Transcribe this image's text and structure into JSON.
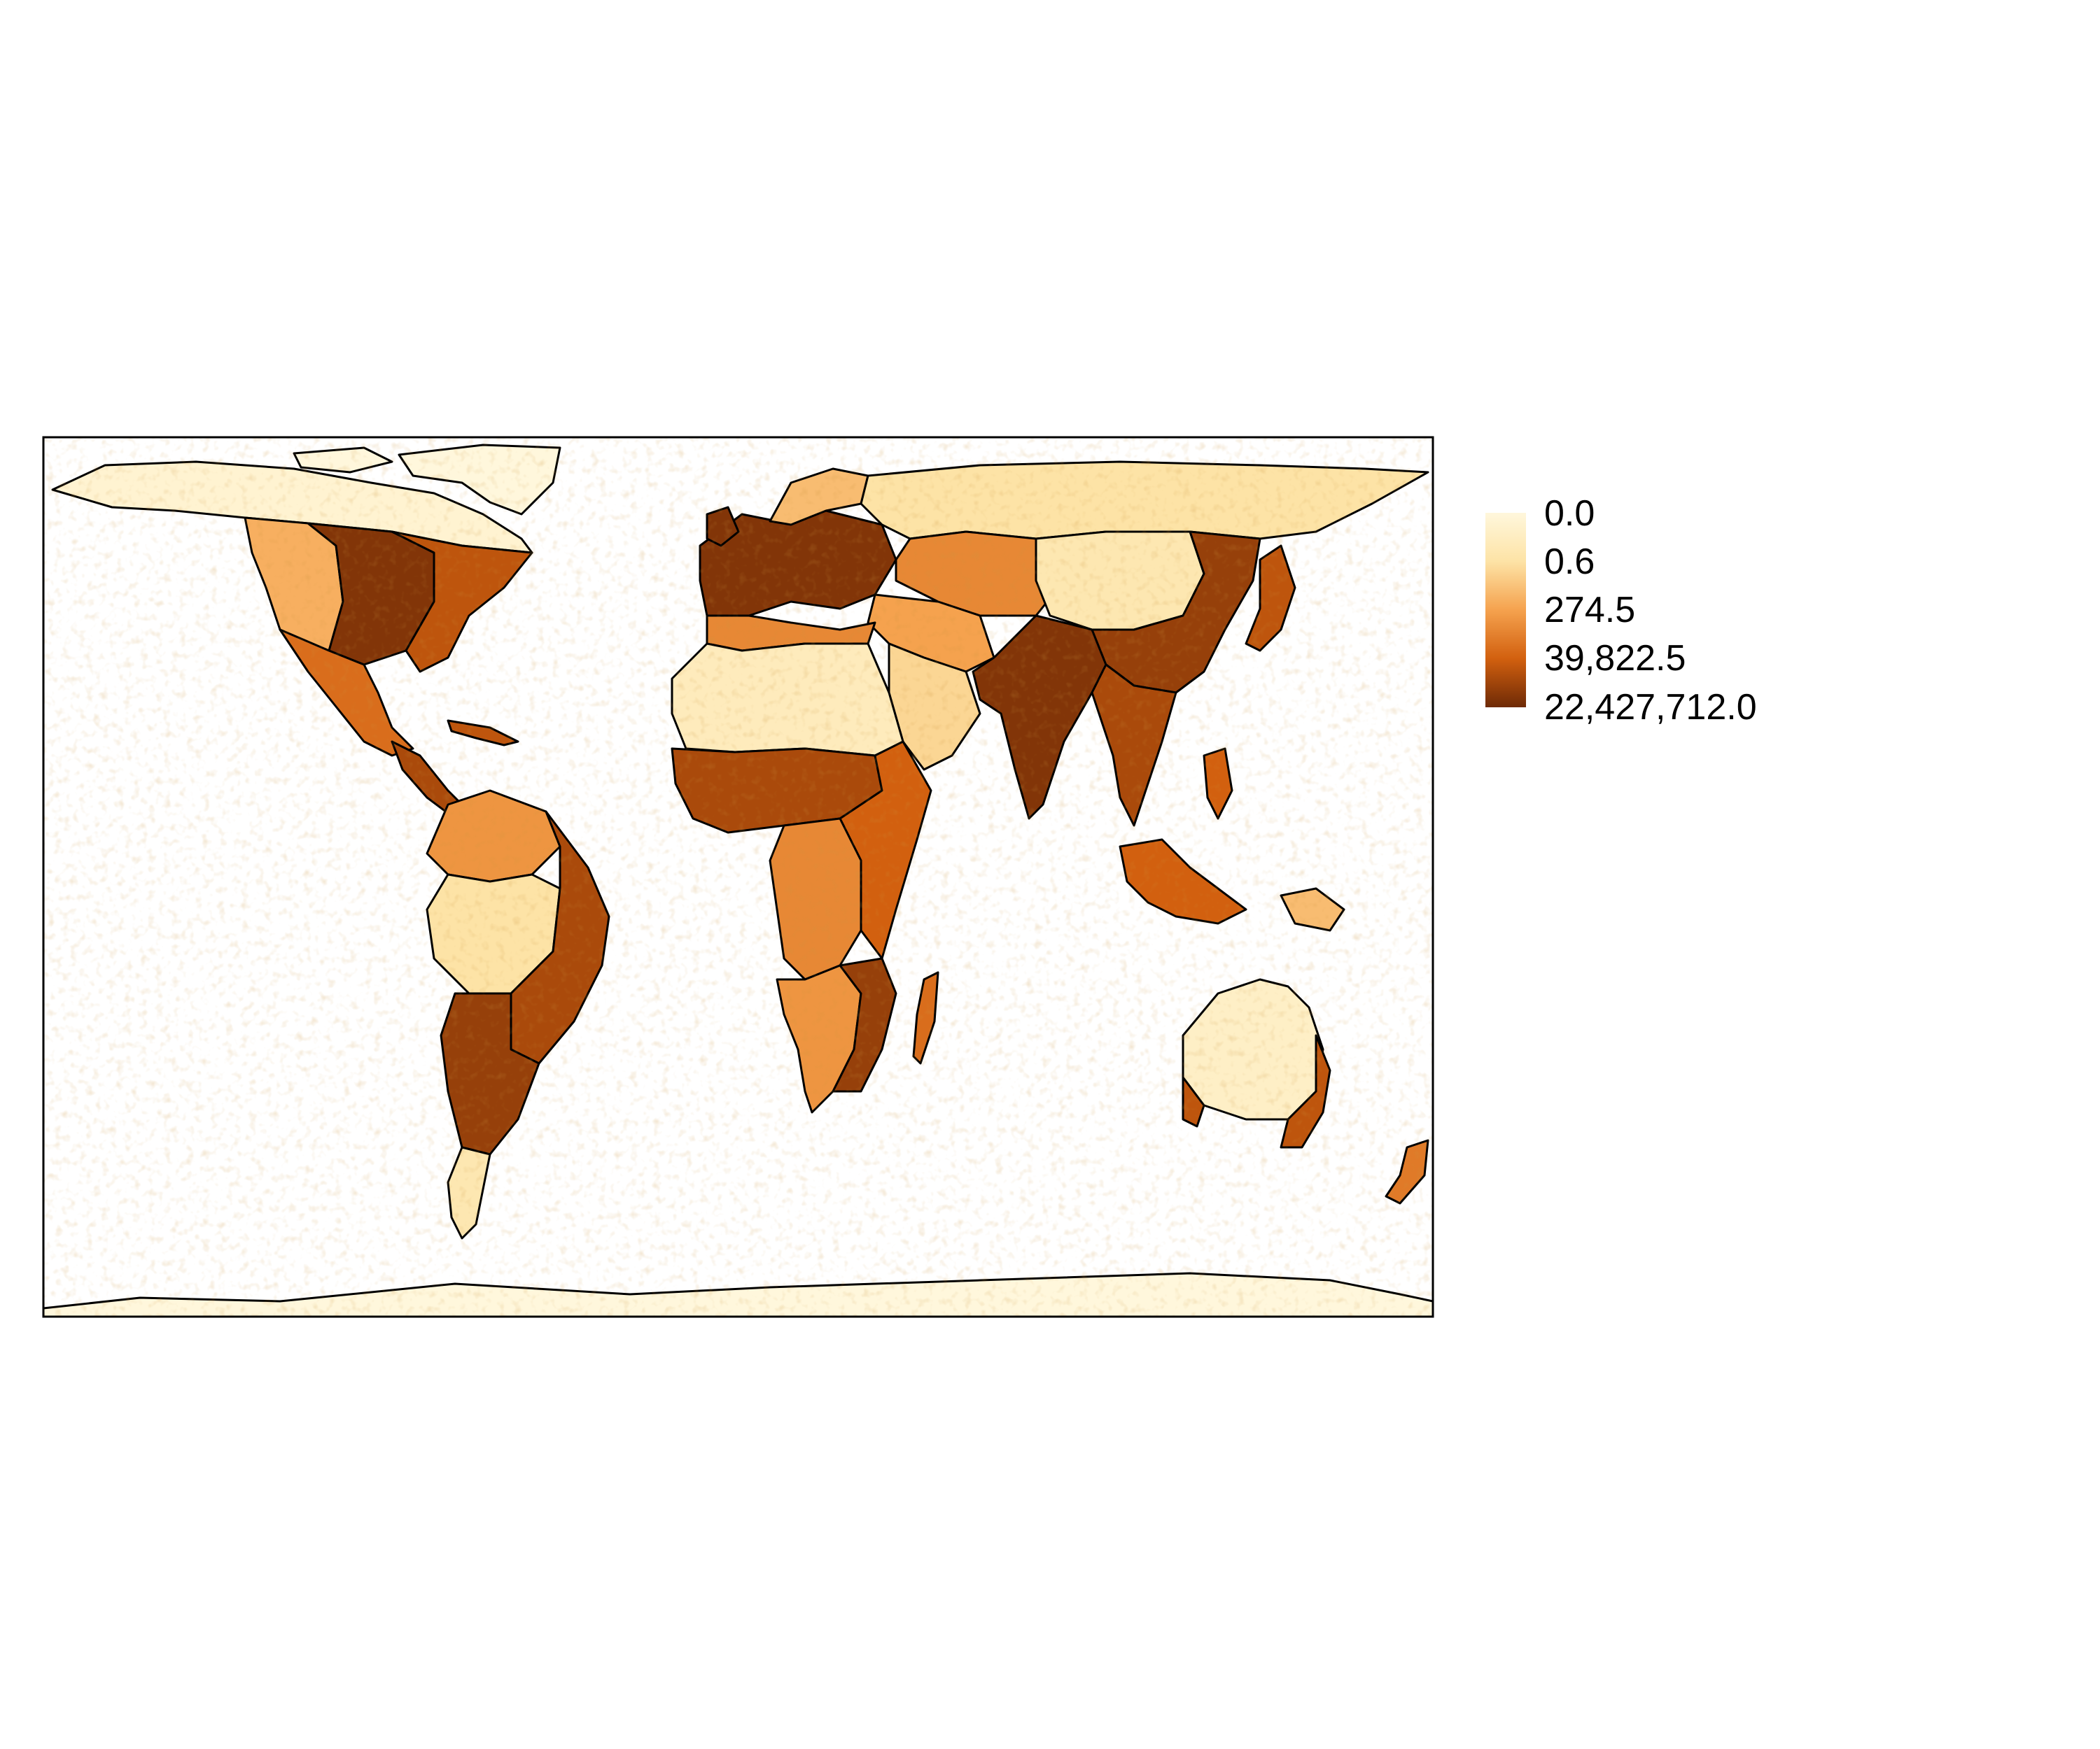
{
  "map": {
    "projection": "equal-area world map",
    "frame_color": "#000000",
    "background": "#ffffff",
    "outline_color": "#000000"
  },
  "legend": {
    "placement": "right",
    "labels": [
      "0.0",
      "0.6",
      "274.5",
      "39,822.5",
      "22,427,712.0"
    ],
    "colors": [
      "#fff7dc",
      "#fde3a6",
      "#f5a24e",
      "#d2600f",
      "#6e2a06"
    ]
  },
  "regions": [
    {
      "name": "Canada / Alaska (north)",
      "level": 0.05
    },
    {
      "name": "US Midwest",
      "level": 0.95
    },
    {
      "name": "US West",
      "level": 0.45
    },
    {
      "name": "US East",
      "level": 0.8
    },
    {
      "name": "Mexico",
      "level": 0.7
    },
    {
      "name": "Central America",
      "level": 0.85
    },
    {
      "name": "Caribbean",
      "level": 0.8
    },
    {
      "name": "Northern South America",
      "level": 0.55
    },
    {
      "name": "Amazon basin",
      "level": 0.25
    },
    {
      "name": "Brazil east / south",
      "level": 0.85
    },
    {
      "name": "Argentina pampas",
      "level": 0.9
    },
    {
      "name": "Patagonia",
      "level": 0.2
    },
    {
      "name": "Greenland / Arctic",
      "level": 0.0
    },
    {
      "name": "Western Europe",
      "level": 0.95
    },
    {
      "name": "Scandinavia",
      "level": 0.4
    },
    {
      "name": "Russia / Siberia",
      "level": 0.25
    },
    {
      "name": "Central Asia steppe",
      "level": 0.6
    },
    {
      "name": "Middle East",
      "level": 0.5
    },
    {
      "name": "Arabian Peninsula",
      "level": 0.3
    },
    {
      "name": "Sahara",
      "level": 0.15
    },
    {
      "name": "Maghreb coast",
      "level": 0.6
    },
    {
      "name": "Sahel / West Africa",
      "level": 0.85
    },
    {
      "name": "Central Africa",
      "level": 0.6
    },
    {
      "name": "East Africa",
      "level": 0.75
    },
    {
      "name": "Southern Africa",
      "level": 0.55
    },
    {
      "name": "South Africa east",
      "level": 0.9
    },
    {
      "name": "Madagascar",
      "level": 0.7
    },
    {
      "name": "India",
      "level": 0.95
    },
    {
      "name": "Tibet / Mongolia",
      "level": 0.2
    },
    {
      "name": "East China",
      "level": 0.9
    },
    {
      "name": "Japan / Korea",
      "level": 0.8
    },
    {
      "name": "Southeast Asia",
      "level": 0.85
    },
    {
      "name": "Indonesia / Philippines",
      "level": 0.75
    },
    {
      "name": "Papua New Guinea",
      "level": 0.4
    },
    {
      "name": "Australia interior",
      "level": 0.1
    },
    {
      "name": "Australia SE / SW",
      "level": 0.8
    },
    {
      "name": "New Zealand",
      "level": 0.65
    },
    {
      "name": "Antarctica",
      "level": 0.0
    }
  ]
}
